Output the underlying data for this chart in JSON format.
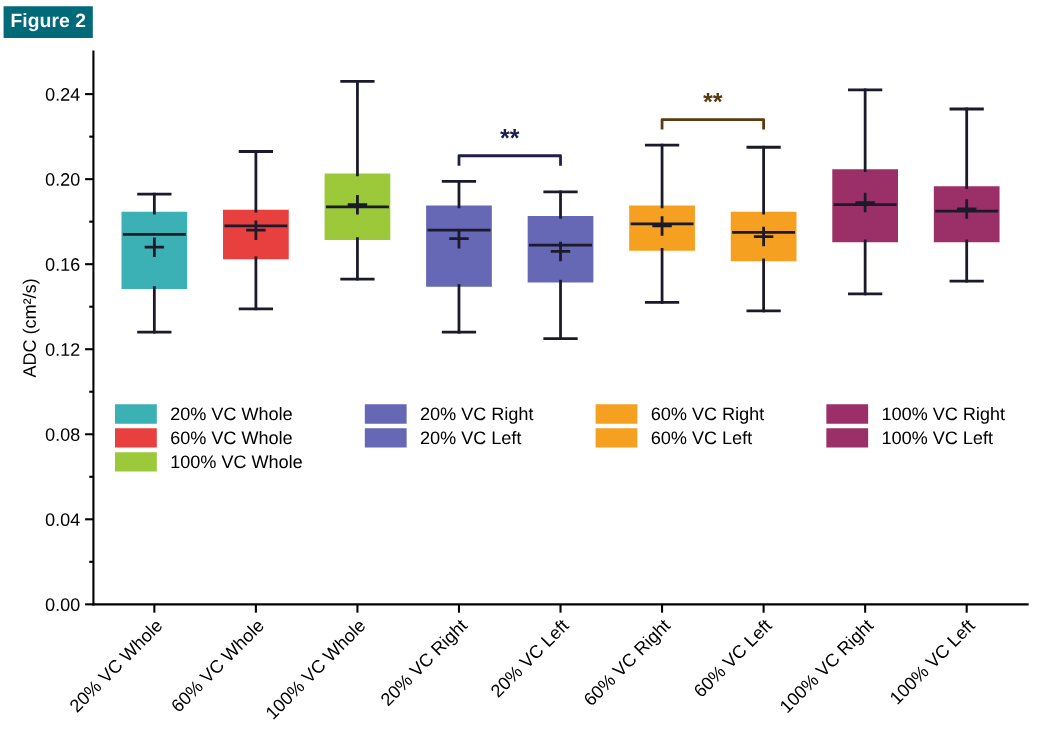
{
  "chart_data": {
    "type": "box",
    "title": "Figure 2",
    "ylabel": "ADC (cm²/s)",
    "categories": [
      "20% VC Whole",
      "60% VC Whole",
      "100% VC Whole",
      "20% VC Right",
      "20% VC Left",
      "60% VC Right",
      "60% VC Left",
      "100% VC Right",
      "100% VC Left"
    ],
    "series": [
      {
        "name": "20% VC Whole",
        "color": "#3bb0b5",
        "boxes": [
          {
            "low": 0.128,
            "q1": 0.149,
            "median": 0.174,
            "q3": 0.184,
            "high": 0.193,
            "mean": 0.168
          },
          null,
          null,
          null,
          null,
          null,
          null,
          null,
          null
        ]
      },
      {
        "name": "60% VC Whole",
        "color": "#e8403f",
        "boxes": [
          null,
          {
            "low": 0.139,
            "q1": 0.163,
            "median": 0.178,
            "q3": 0.185,
            "high": 0.213,
            "mean": 0.176
          },
          null,
          null,
          null,
          null,
          null,
          null,
          null
        ]
      },
      {
        "name": "100% VC Whole",
        "color": "#9bc93a",
        "boxes": [
          null,
          null,
          {
            "low": 0.153,
            "q1": 0.172,
            "median": 0.187,
            "q3": 0.202,
            "high": 0.246,
            "mean": 0.188
          },
          null,
          null,
          null,
          null,
          null,
          null
        ]
      },
      {
        "name": "20% VC Right",
        "color": "#6668b6",
        "boxes": [
          null,
          null,
          null,
          {
            "low": 0.128,
            "q1": 0.15,
            "median": 0.176,
            "q3": 0.187,
            "high": 0.199,
            "mean": 0.172
          },
          null,
          null,
          null,
          null,
          null
        ]
      },
      {
        "name": "20% VC Left",
        "color": "#6668b6",
        "boxes": [
          null,
          null,
          null,
          null,
          {
            "low": 0.125,
            "q1": 0.152,
            "median": 0.169,
            "q3": 0.182,
            "high": 0.194,
            "mean": 0.166
          },
          null,
          null,
          null,
          null
        ]
      },
      {
        "name": "60% VC Right",
        "color": "#f5a020",
        "boxes": [
          null,
          null,
          null,
          null,
          null,
          {
            "low": 0.142,
            "q1": 0.167,
            "median": 0.179,
            "q3": 0.187,
            "high": 0.216,
            "mean": 0.178
          },
          null,
          null,
          null
        ]
      },
      {
        "name": "60% VC Left",
        "color": "#f5a020",
        "boxes": [
          null,
          null,
          null,
          null,
          null,
          null,
          {
            "low": 0.138,
            "q1": 0.162,
            "median": 0.175,
            "q3": 0.184,
            "high": 0.215,
            "mean": 0.173
          },
          null,
          null
        ]
      },
      {
        "name": "100% VC Right",
        "color": "#9b3068",
        "boxes": [
          null,
          null,
          null,
          null,
          null,
          null,
          null,
          {
            "low": 0.146,
            "q1": 0.171,
            "median": 0.188,
            "q3": 0.204,
            "high": 0.242,
            "mean": 0.189
          },
          null
        ]
      },
      {
        "name": "100% VC Left",
        "color": "#9b3068",
        "boxes": [
          null,
          null,
          null,
          null,
          null,
          null,
          null,
          null,
          {
            "low": 0.152,
            "q1": 0.171,
            "median": 0.185,
            "q3": 0.196,
            "high": 0.233,
            "mean": 0.186
          }
        ]
      }
    ],
    "annotations": [
      "**",
      "**"
    ],
    "ylim": [
      0,
      0.26
    ],
    "yticks": [
      {
        "value": 0,
        "label": "0.00"
      },
      {
        "value": 0.04,
        "label": "0.04"
      },
      {
        "value": 0.08,
        "label": "0.08"
      },
      {
        "value": 0.12,
        "label": "0.12"
      },
      {
        "value": 0.16,
        "label": "0.16"
      },
      {
        "value": 0.2,
        "label": "0.20"
      },
      {
        "value": 0.24,
        "label": "0.24"
      }
    ],
    "grid": false,
    "legend": "center"
  }
}
